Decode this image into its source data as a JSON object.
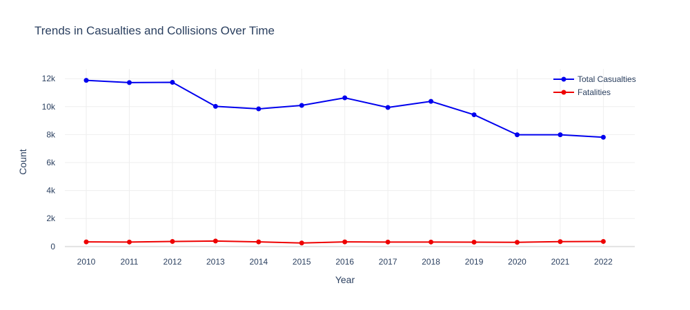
{
  "chart_data": {
    "type": "line",
    "title": "Trends in Casualties and Collisions Over Time",
    "xlabel": "Year",
    "ylabel": "Count",
    "x": [
      "2010",
      "2011",
      "2012",
      "2013",
      "2014",
      "2015",
      "2016",
      "2017",
      "2018",
      "2019",
      "2020",
      "2021",
      "2022"
    ],
    "ylim": [
      -600,
      12700
    ],
    "yticks": [
      0,
      2000,
      4000,
      6000,
      8000,
      10000,
      12000
    ],
    "ytick_labels": [
      "0",
      "2k",
      "4k",
      "6k",
      "8k",
      "10k",
      "12k"
    ],
    "grid": true,
    "legend_position": "top-right",
    "series": [
      {
        "name": "Total Casualties",
        "color": "#0000ee",
        "values": [
          11880,
          11720,
          11740,
          10020,
          9840,
          10090,
          10630,
          9940,
          10380,
          9420,
          7990,
          7990,
          7810
        ]
      },
      {
        "name": "Fatalities",
        "color": "#ee0000",
        "values": [
          330,
          320,
          360,
          390,
          330,
          250,
          330,
          320,
          320,
          310,
          300,
          350,
          360
        ]
      }
    ]
  }
}
